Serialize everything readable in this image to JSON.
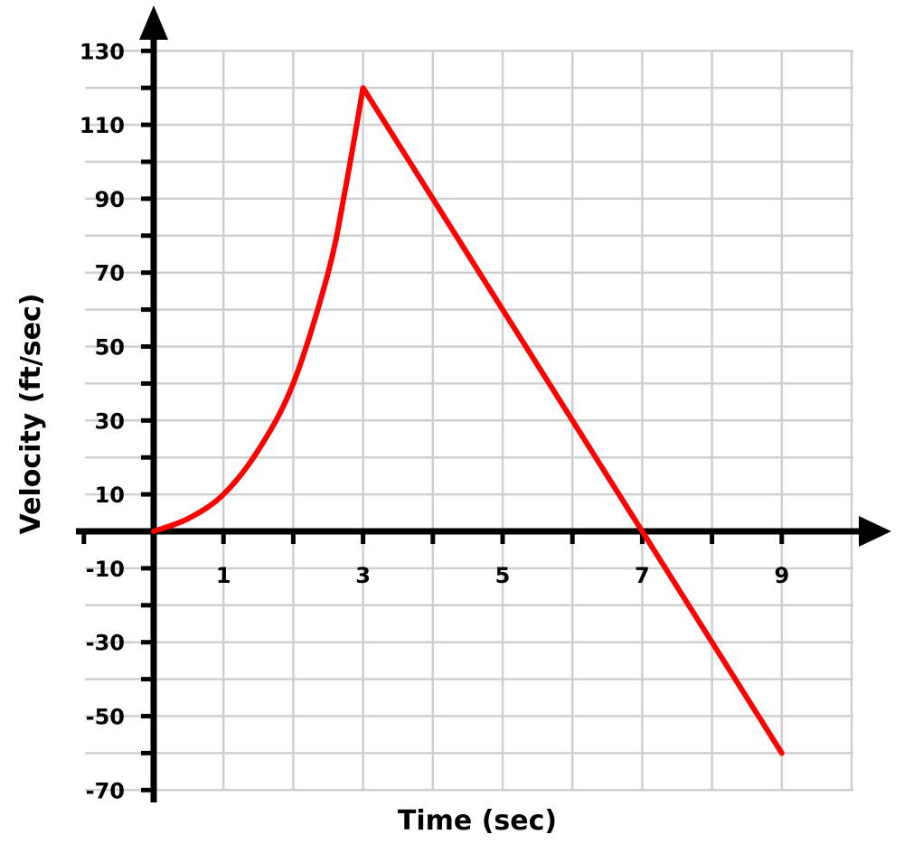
{
  "chart_data": {
    "type": "line",
    "title": "",
    "xlabel": "Time (sec)",
    "ylabel": "Velocity (ft/sec)",
    "xlim": [
      0,
      10
    ],
    "ylim": [
      -70,
      130
    ],
    "x_ticks": [
      1,
      3,
      5,
      7,
      9
    ],
    "y_ticks": [
      130,
      110,
      90,
      70,
      50,
      30,
      10,
      -10,
      -30,
      -50,
      -70
    ],
    "grid": true,
    "series": [
      {
        "color": "#ff0000",
        "x": [
          0,
          0.5,
          1,
          1.5,
          2,
          2.5,
          2.75,
          3,
          5,
          7,
          9
        ],
        "y": [
          0,
          3.5,
          10,
          22,
          40,
          70,
          93,
          120,
          60,
          0,
          -60
        ]
      }
    ]
  }
}
